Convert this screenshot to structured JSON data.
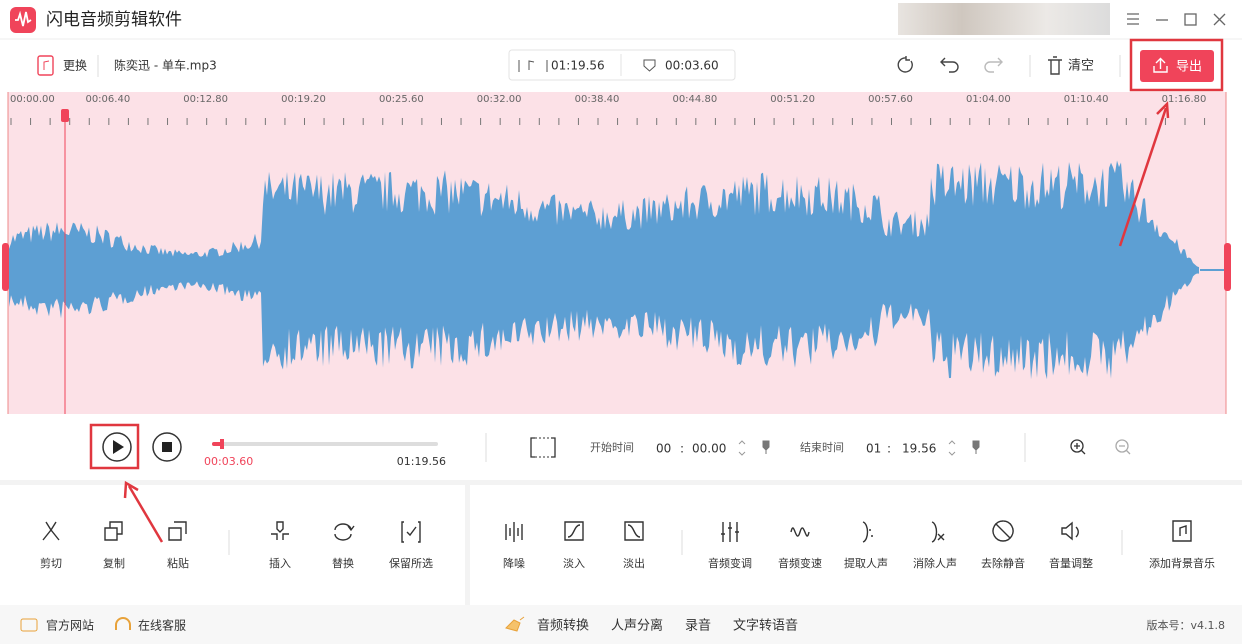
{
  "app": {
    "title": "闪电音频剪辑软件"
  },
  "toolbar": {
    "replace": "更换",
    "file_name": "陈奕迅 - 单车.mp3",
    "duration": "01:19.56",
    "selection": "00:03.60",
    "clear": "清空",
    "export": "导出"
  },
  "timeline": {
    "labels": [
      "00:00.00",
      "00:06.40",
      "00:12.80",
      "00:19.20",
      "00:25.60",
      "00:32.00",
      "00:38.40",
      "00:44.80",
      "00:51.20",
      "00:57.60",
      "01:04.00",
      "01:10.40",
      "01:16.80"
    ]
  },
  "playback": {
    "current": "00:03.60",
    "total": "01:19.56",
    "start_label": "开始时间",
    "start_min": "00",
    "start_sec": "00.00",
    "time_separator": ":",
    "end_label": "结束时间",
    "end_min": "01",
    "end_sec": "19.56"
  },
  "tools": {
    "left": [
      "剪切",
      "复制",
      "粘贴",
      "插入",
      "替换",
      "保留所选"
    ],
    "right": [
      "降噪",
      "淡入",
      "淡出",
      "音频变调",
      "音频变速",
      "提取人声",
      "消除人声",
      "去除静音",
      "音量调整",
      "添加背景音乐"
    ]
  },
  "footer": {
    "links": [
      "官方网站",
      "在线客服"
    ],
    "features": [
      "音频转换",
      "人声分离",
      "录音",
      "文字转语音"
    ],
    "version": "版本号：v4.1.8"
  }
}
